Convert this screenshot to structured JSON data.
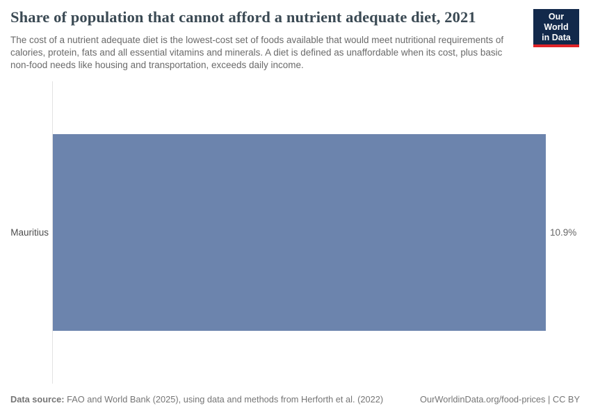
{
  "header": {
    "title": "Share of population that cannot afford a nutrient adequate diet, 2021",
    "subtitle": "The cost of a nutrient adequate diet is the lowest-cost set of foods available that would meet nutritional requirements of calories, protein, fats and all essential vitamins and minerals. A diet is defined as unaffordable when its cost, plus basic non-food needs like housing and transportation, exceeds daily income.",
    "logo": {
      "line1": "Our World",
      "line2": "in Data",
      "bg_color": "#12294b",
      "accent_color": "#e02328"
    }
  },
  "chart_data": {
    "type": "bar",
    "orientation": "horizontal",
    "title": "Share of population that cannot afford a nutrient adequate diet, 2021",
    "categories": [
      "Mauritius"
    ],
    "values": [
      10.9
    ],
    "value_labels": [
      "10.9%"
    ],
    "unit": "%",
    "year": "2021",
    "xlim": [
      0,
      10.9
    ],
    "xlabel": "",
    "ylabel": "",
    "grid": false,
    "legend": "none",
    "bar_color": "#6c84ad",
    "axis_line_color": "#e2e2e2"
  },
  "footer": {
    "source_label": "Data source:",
    "source_text": "FAO and World Bank (2025), using data and methods from Herforth et al. (2022)",
    "attribution": "OurWorldinData.org/food-prices | CC BY"
  }
}
